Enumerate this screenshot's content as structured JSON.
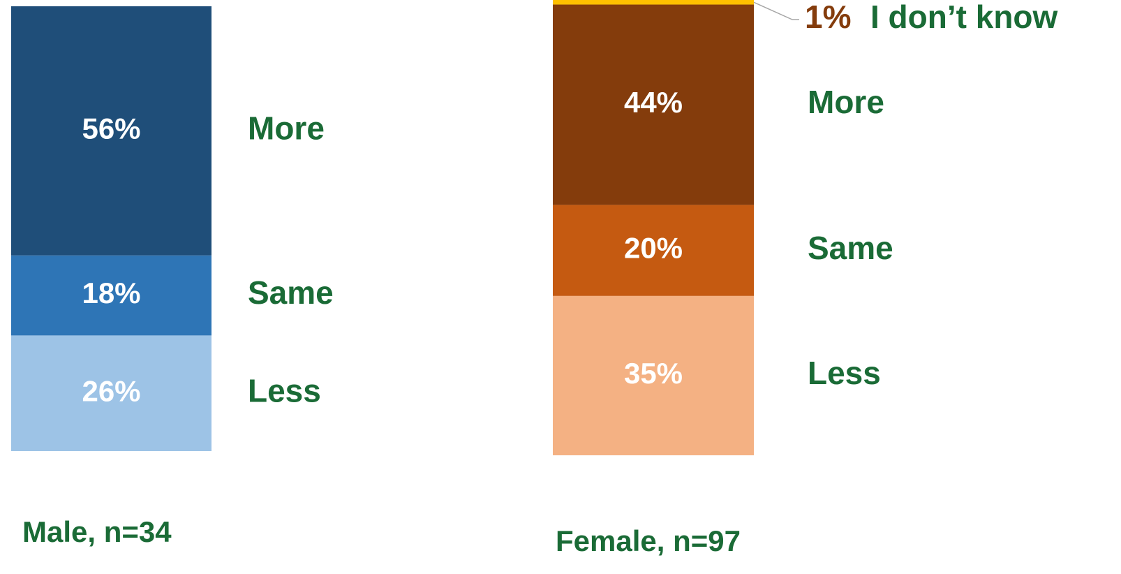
{
  "chart_data": [
    {
      "type": "stacked_bar",
      "categories": [
        "Male, n=34"
      ],
      "ylim": [
        0,
        100
      ],
      "series": [
        {
          "name": "Less",
          "color": "#9dc3e6",
          "values": [
            26
          ],
          "value_labels": [
            "26%"
          ]
        },
        {
          "name": "Same",
          "color": "#2e75b6",
          "values": [
            18
          ],
          "value_labels": [
            "18%"
          ]
        },
        {
          "name": "More",
          "color": "#1f4e79",
          "values": [
            56
          ],
          "value_labels": [
            "56%"
          ]
        }
      ]
    },
    {
      "type": "stacked_bar",
      "categories": [
        "Female, n=97"
      ],
      "ylim": [
        0,
        100
      ],
      "series": [
        {
          "name": "Less",
          "color": "#f4b183",
          "values": [
            35
          ],
          "value_labels": [
            "35%"
          ]
        },
        {
          "name": "Same",
          "color": "#c55a11",
          "values": [
            20
          ],
          "value_labels": [
            "20%"
          ]
        },
        {
          "name": "More",
          "color": "#843c0c",
          "values": [
            44
          ],
          "value_labels": [
            "44%"
          ]
        },
        {
          "name": "I don’t know",
          "color": "#ffc000",
          "values": [
            1
          ],
          "value_labels": [
            "1%"
          ]
        }
      ]
    }
  ]
}
